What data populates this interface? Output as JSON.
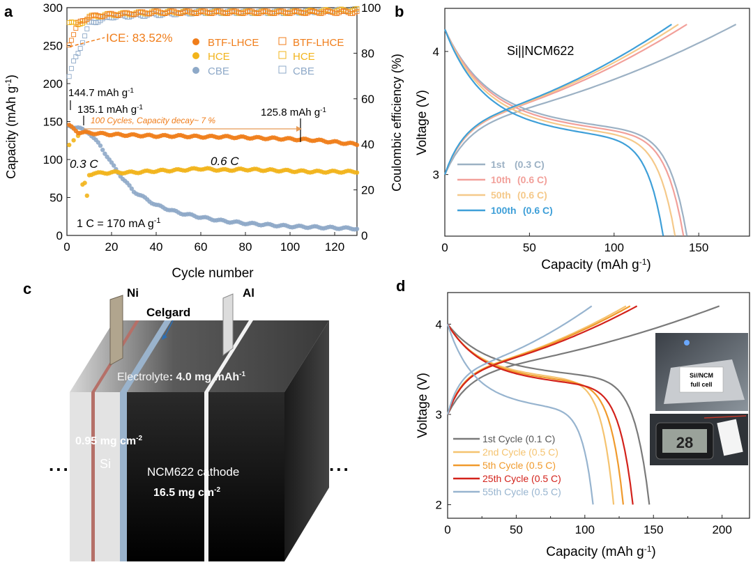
{
  "chart_data": [
    {
      "panel": "a",
      "type": "scatter",
      "xlabel": "Cycle number",
      "ylabel": "Capacity (mAh g-1)",
      "ylabel_main": "Capacity (mAh g",
      "ylabel_right": "Coulombic efficiency (%)",
      "xlim": [
        0,
        130
      ],
      "ylim": [
        0,
        300
      ],
      "y2lim": [
        0,
        100
      ],
      "xticks": [
        "0",
        "20",
        "40",
        "60",
        "80",
        "100",
        "120"
      ],
      "yticks": [
        "0",
        "50",
        "100",
        "150",
        "200",
        "250",
        "300"
      ],
      "y2ticks": [
        "0",
        "20",
        "40",
        "60",
        "80",
        "100"
      ],
      "legend": [
        {
          "name": "BTF-LHCE",
          "color": "#f07d1a",
          "marker": "filled"
        },
        {
          "name": "HCE",
          "color": "#f2b41b",
          "marker": "filled"
        },
        {
          "name": "CBE",
          "color": "#8ea9c8",
          "marker": "filled"
        },
        {
          "name": "BTF-LHCE",
          "color": "#f07d1a",
          "marker": "open"
        },
        {
          "name": "HCE",
          "color": "#f2b41b",
          "marker": "open"
        },
        {
          "name": "CBE",
          "color": "#8ea9c8",
          "marker": "open"
        }
      ],
      "series": [
        {
          "name": "BTF-LHCE capacity",
          "axis": "left",
          "x": [
            1,
            5,
            10,
            20,
            30,
            40,
            50,
            60,
            70,
            80,
            90,
            100,
            110,
            120,
            130
          ],
          "y": [
            144.7,
            136,
            135.1,
            133,
            132,
            131,
            131,
            130,
            130,
            129,
            128,
            127,
            125.8,
            123,
            120
          ]
        },
        {
          "name": "HCE capacity",
          "axis": "left",
          "x": [
            1,
            3,
            5,
            7,
            8,
            9,
            10,
            12,
            15,
            20,
            30,
            40,
            50,
            60,
            70,
            80,
            90,
            100,
            110,
            120,
            130
          ],
          "y": [
            118,
            126,
            132,
            66,
            68,
            52,
            80,
            82,
            82,
            83,
            83,
            85,
            86,
            88,
            86,
            87,
            86,
            85,
            84,
            84,
            84
          ]
        },
        {
          "name": "CBE capacity",
          "axis": "left",
          "x": [
            1,
            5,
            10,
            15,
            20,
            25,
            30,
            40,
            50,
            60,
            70,
            80,
            90,
            100,
            110,
            120,
            130
          ],
          "y": [
            144,
            142,
            135,
            118,
            95,
            75,
            58,
            40,
            30,
            24,
            19,
            16,
            14,
            12,
            11,
            10,
            9
          ]
        },
        {
          "name": "BTF-LHCE CE",
          "axis": "right",
          "x": [
            1,
            5,
            10,
            20,
            40,
            60,
            80,
            100,
            130
          ],
          "y": [
            84,
            93,
            96,
            97,
            98,
            98,
            98,
            98,
            98
          ]
        },
        {
          "name": "HCE CE",
          "axis": "right",
          "x": [
            2,
            5,
            10,
            20,
            40,
            60,
            80,
            100,
            130
          ],
          "y": [
            94,
            92,
            96,
            97,
            98,
            98,
            98,
            98,
            99
          ]
        },
        {
          "name": "CBE CE",
          "axis": "right",
          "x": [
            1,
            3,
            5,
            10,
            20,
            40,
            60,
            80,
            100,
            130
          ],
          "y": [
            70,
            76,
            80,
            93,
            96,
            97,
            98,
            98,
            98,
            99
          ]
        }
      ],
      "annotations": {
        "ice": "ICE: 83.52%",
        "cap1": "144.7 mAh g",
        "cap2": "135.1 mAh g",
        "cap3": "125.8 mAh g",
        "decay": "100 Cycles, Capacity decay~ 7 %",
        "rate1": "0.3 C",
        "rate2": "0.6 C",
        "rate_def": "1 C = 170 mA g"
      }
    },
    {
      "panel": "b",
      "type": "line",
      "title": "Si||NCM622",
      "xlabel": "Capacity (mAh g-1)",
      "xlabel_main": "Capacity (mAh g",
      "ylabel": "Voltage (V)",
      "xlim": [
        0,
        180
      ],
      "ylim": [
        2.5,
        4.35
      ],
      "xticks": [
        "0",
        "50",
        "100",
        "150"
      ],
      "yticks": [
        "3",
        "4"
      ],
      "series": [
        {
          "name": "1st",
          "rate": "(0.3 C)",
          "color": "#9cb1c4",
          "charge_end": 172,
          "discharge_end": 143
        },
        {
          "name": "10th",
          "rate": "(0.6 C)",
          "color": "#f2a09a",
          "charge_end": 143,
          "discharge_end": 141
        },
        {
          "name": "50th",
          "rate": "(0.6 C)",
          "color": "#f5c98a",
          "charge_end": 138,
          "discharge_end": 136
        },
        {
          "name": "100th",
          "rate": "(0.6 C)",
          "color": "#3e9fd8",
          "charge_end": 134,
          "discharge_end": 129
        }
      ]
    },
    {
      "panel": "c",
      "type": "diagram",
      "labels": {
        "ni": "Ni",
        "al": "Al",
        "celgard": "Celgard",
        "electrolyte_a": "Electrolyte",
        "electrolyte_b": ": 4.0 mg mAh",
        "si_loading": "0.95 mg cm",
        "si": "Si",
        "cathode": "NCM622 cathode",
        "cathode_loading": "16.5 mg cm",
        "dots": "..."
      }
    },
    {
      "panel": "d",
      "type": "line",
      "xlabel": "Capacity (mAh g-1)",
      "xlabel_main": "Capacity (mAh g",
      "ylabel": "Voltage (V)",
      "xlim": [
        0,
        220
      ],
      "ylim": [
        1.85,
        4.35
      ],
      "xticks": [
        "0",
        "50",
        "100",
        "150",
        "200"
      ],
      "yticks": [
        "2",
        "3",
        "4"
      ],
      "series": [
        {
          "name": "1st Cycle (0.1 C)",
          "color": "#7a7a7a",
          "charge_end": 198,
          "discharge_end": 147
        },
        {
          "name": "2nd Cycle (0.5 C)",
          "color": "#f5c36f",
          "charge_end": 130,
          "discharge_end": 121
        },
        {
          "name": "5th Cycle (0.5 C)",
          "color": "#f09a2c",
          "charge_end": 133,
          "discharge_end": 128
        },
        {
          "name": "25th Cycle (0.5 C)",
          "color": "#d3221b",
          "charge_end": 138,
          "discharge_end": 135
        },
        {
          "name": "55th Cycle (0.5 C)",
          "color": "#97b4cf",
          "charge_end": 105,
          "discharge_end": 106
        }
      ],
      "inset_text": {
        "l1": "Si//NCM",
        "l2": "full cell",
        "display": "28"
      }
    }
  ],
  "panel_labels": {
    "a": "a",
    "b": "b",
    "c": "c",
    "d": "d"
  }
}
